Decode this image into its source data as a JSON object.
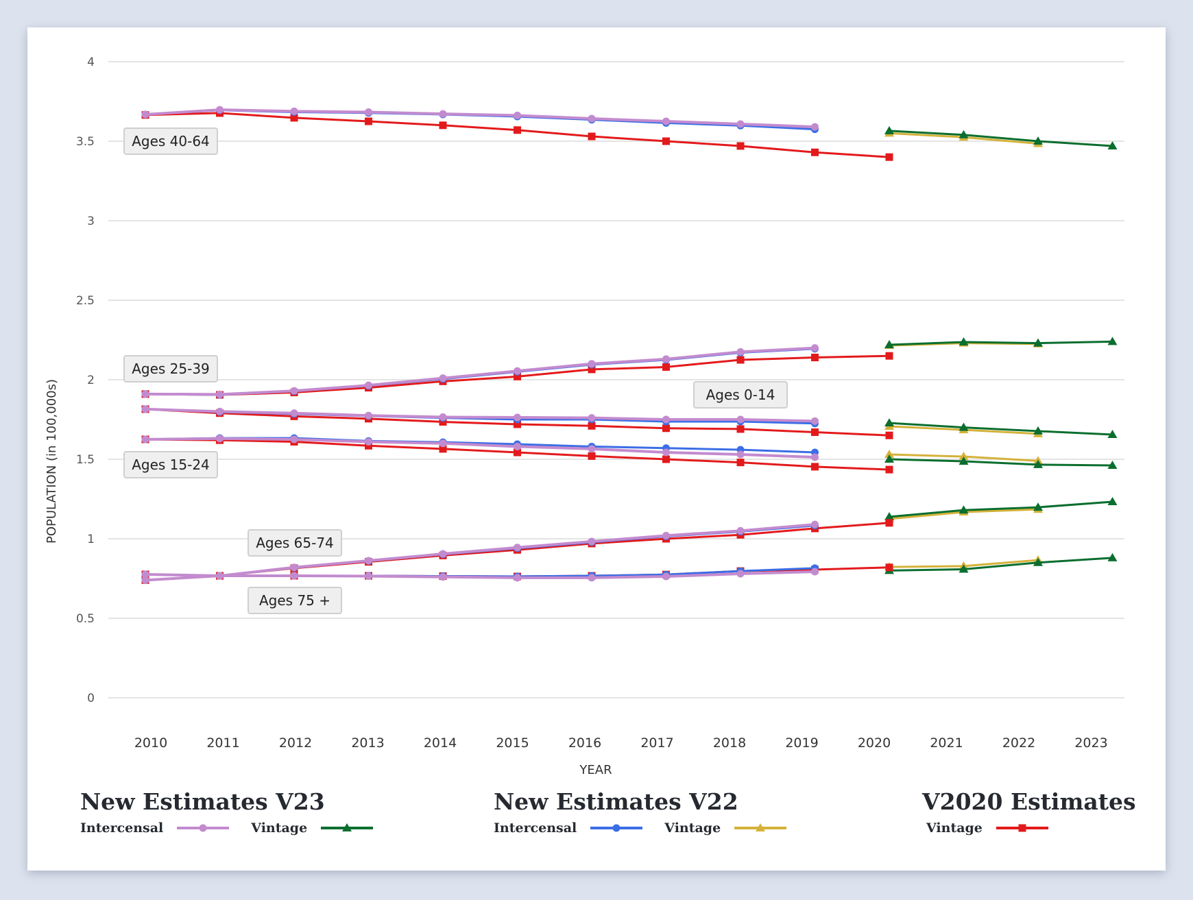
{
  "chart_data": {
    "type": "line",
    "title": "",
    "xlabel": "YEAR",
    "ylabel": "POPULATION (in 100,000s)",
    "ylim": [
      0,
      4
    ],
    "yticks": [
      "0",
      "0.5",
      "1",
      "1.5",
      "2",
      "2.5",
      "3",
      "3.5",
      "4"
    ],
    "ytick_values": [
      0,
      0.5,
      1,
      1.5,
      2,
      2.5,
      3,
      3.5,
      4
    ],
    "x": [
      2010,
      2011,
      2012,
      2013,
      2014,
      2015,
      2016,
      2017,
      2018,
      2019,
      2020,
      2021,
      2022,
      2023
    ],
    "xticks": [
      "2010",
      "2011",
      "2012",
      "2013",
      "2014",
      "2015",
      "2016",
      "2017",
      "2018",
      "2019",
      "2020",
      "2021",
      "2022",
      "2023"
    ],
    "grid": true,
    "legend_position": "bottom",
    "age_groups": [
      {
        "label": "Ages 40-64",
        "series": {
          "v22_intercensal": {
            "x": [
              2010,
              2011,
              2012,
              2013,
              2014,
              2015,
              2016,
              2017,
              2018,
              2019
            ],
            "values": [
              3.668,
              3.695,
              3.683,
              3.678,
              3.668,
              3.655,
              3.635,
              3.615,
              3.598,
              3.575
            ]
          },
          "v23_intercensal": {
            "x": [
              2010,
              2011,
              2012,
              2013,
              2014,
              2015,
              2016,
              2017,
              2018,
              2019
            ],
            "values": [
              3.668,
              3.698,
              3.688,
              3.683,
              3.672,
              3.662,
              3.642,
              3.625,
              3.608,
              3.59
            ]
          },
          "v2020_vintage": {
            "x": [
              2010,
              2011,
              2012,
              2013,
              2014,
              2015,
              2016,
              2017,
              2018,
              2019,
              2020
            ],
            "values": [
              3.665,
              3.677,
              3.647,
              3.625,
              3.6,
              3.57,
              3.53,
              3.5,
              3.47,
              3.43,
              3.4
            ]
          },
          "v22_vintage": {
            "x": [
              2020,
              2021,
              2022
            ],
            "values": [
              3.55,
              3.525,
              3.485
            ]
          },
          "v23_vintage": {
            "x": [
              2020,
              2021,
              2022,
              2023
            ],
            "values": [
              3.565,
              3.54,
              3.5,
              3.47
            ]
          }
        }
      },
      {
        "label": "Ages 25-39",
        "series": {
          "v22_intercensal": {
            "x": [
              2010,
              2011,
              2012,
              2013,
              2014,
              2015,
              2016,
              2017,
              2018,
              2019
            ],
            "values": [
              1.91,
              1.905,
              1.928,
              1.962,
              2.005,
              2.05,
              2.095,
              2.125,
              2.17,
              2.195
            ]
          },
          "v23_intercensal": {
            "x": [
              2010,
              2011,
              2012,
              2013,
              2014,
              2015,
              2016,
              2017,
              2018,
              2019
            ],
            "values": [
              1.91,
              1.908,
              1.93,
              1.965,
              2.01,
              2.055,
              2.1,
              2.13,
              2.175,
              2.2
            ]
          },
          "v2020_vintage": {
            "x": [
              2010,
              2011,
              2012,
              2013,
              2014,
              2015,
              2016,
              2017,
              2018,
              2019,
              2020
            ],
            "values": [
              1.91,
              1.905,
              1.92,
              1.95,
              1.99,
              2.02,
              2.065,
              2.08,
              2.125,
              2.14,
              2.15
            ]
          },
          "v22_vintage": {
            "x": [
              2020,
              2021,
              2022
            ],
            "values": [
              2.215,
              2.23,
              2.225
            ]
          },
          "v23_vintage": {
            "x": [
              2020,
              2021,
              2022,
              2023
            ],
            "values": [
              2.22,
              2.237,
              2.23,
              2.24
            ]
          }
        }
      },
      {
        "label": "Ages 0-14",
        "series": {
          "v22_intercensal": {
            "x": [
              2010,
              2011,
              2012,
              2013,
              2014,
              2015,
              2016,
              2017,
              2018,
              2019
            ],
            "values": [
              1.815,
              1.797,
              1.785,
              1.772,
              1.76,
              1.75,
              1.75,
              1.737,
              1.737,
              1.725
            ]
          },
          "v23_intercensal": {
            "x": [
              2010,
              2011,
              2012,
              2013,
              2014,
              2015,
              2016,
              2017,
              2018,
              2019
            ],
            "values": [
              1.815,
              1.8,
              1.79,
              1.775,
              1.765,
              1.763,
              1.76,
              1.75,
              1.75,
              1.74
            ]
          },
          "v2020_vintage": {
            "x": [
              2010,
              2011,
              2012,
              2013,
              2014,
              2015,
              2016,
              2017,
              2018,
              2019,
              2020
            ],
            "values": [
              1.815,
              1.79,
              1.77,
              1.755,
              1.735,
              1.72,
              1.71,
              1.695,
              1.69,
              1.67,
              1.65
            ]
          },
          "v22_vintage": {
            "x": [
              2020,
              2021,
              2022
            ],
            "values": [
              1.707,
              1.685,
              1.66
            ]
          },
          "v23_vintage": {
            "x": [
              2020,
              2021,
              2022,
              2023
            ],
            "values": [
              1.728,
              1.7,
              1.677,
              1.655
            ]
          }
        }
      },
      {
        "label": "Ages 15-24",
        "series": {
          "v22_intercensal": {
            "x": [
              2010,
              2011,
              2012,
              2013,
              2014,
              2015,
              2016,
              2017,
              2018,
              2019
            ],
            "values": [
              1.625,
              1.633,
              1.633,
              1.615,
              1.607,
              1.595,
              1.58,
              1.57,
              1.56,
              1.543
            ]
          },
          "v23_intercensal": {
            "x": [
              2010,
              2011,
              2012,
              2013,
              2014,
              2015,
              2016,
              2017,
              2018,
              2019
            ],
            "values": [
              1.625,
              1.63,
              1.625,
              1.61,
              1.6,
              1.58,
              1.565,
              1.543,
              1.53,
              1.513
            ]
          },
          "v2020_vintage": {
            "x": [
              2010,
              2011,
              2012,
              2013,
              2014,
              2015,
              2016,
              2017,
              2018,
              2019,
              2020
            ],
            "values": [
              1.625,
              1.62,
              1.61,
              1.585,
              1.565,
              1.543,
              1.52,
              1.5,
              1.48,
              1.453,
              1.435
            ]
          },
          "v22_vintage": {
            "x": [
              2020,
              2021,
              2022
            ],
            "values": [
              1.53,
              1.517,
              1.49
            ]
          },
          "v23_vintage": {
            "x": [
              2020,
              2021,
              2022,
              2023
            ],
            "values": [
              1.5,
              1.487,
              1.466,
              1.461
            ]
          }
        }
      },
      {
        "label": "Ages 65-74",
        "series": {
          "v22_intercensal": {
            "x": [
              2010,
              2011,
              2012,
              2013,
              2014,
              2015,
              2016,
              2017,
              2018,
              2019
            ],
            "values": [
              0.74,
              0.767,
              0.818,
              0.86,
              0.902,
              0.94,
              0.978,
              1.015,
              1.045,
              1.083
            ]
          },
          "v23_intercensal": {
            "x": [
              2010,
              2011,
              2012,
              2013,
              2014,
              2015,
              2016,
              2017,
              2018,
              2019
            ],
            "values": [
              0.74,
              0.767,
              0.82,
              0.862,
              0.905,
              0.945,
              0.983,
              1.02,
              1.05,
              1.09
            ]
          },
          "v2020_vintage": {
            "x": [
              2010,
              2011,
              2012,
              2013,
              2014,
              2015,
              2016,
              2017,
              2018,
              2019,
              2020
            ],
            "values": [
              0.74,
              0.767,
              0.815,
              0.855,
              0.895,
              0.93,
              0.97,
              1.0,
              1.025,
              1.065,
              1.1
            ]
          },
          "v22_vintage": {
            "x": [
              2020,
              2021,
              2022
            ],
            "values": [
              1.125,
              1.168,
              1.185
            ]
          },
          "v23_vintage": {
            "x": [
              2020,
              2021,
              2022,
              2023
            ],
            "values": [
              1.138,
              1.18,
              1.198,
              1.233
            ]
          }
        }
      },
      {
        "label": "Ages 75 +",
        "series": {
          "v22_intercensal": {
            "x": [
              2010,
              2011,
              2012,
              2013,
              2014,
              2015,
              2016,
              2017,
              2018,
              2019
            ],
            "values": [
              0.776,
              0.767,
              0.767,
              0.767,
              0.765,
              0.763,
              0.767,
              0.775,
              0.797,
              0.815
            ]
          },
          "v23_intercensal": {
            "x": [
              2010,
              2011,
              2012,
              2013,
              2014,
              2015,
              2016,
              2017,
              2018,
              2019
            ],
            "values": [
              0.776,
              0.767,
              0.767,
              0.765,
              0.76,
              0.755,
              0.755,
              0.763,
              0.78,
              0.793
            ]
          },
          "v2020_vintage": {
            "x": [
              2010,
              2011,
              2012,
              2013,
              2014,
              2015,
              2016,
              2017,
              2018,
              2019,
              2020
            ],
            "values": [
              0.776,
              0.767,
              0.767,
              0.767,
              0.765,
              0.763,
              0.767,
              0.775,
              0.797,
              0.806,
              0.82
            ]
          },
          "v22_vintage": {
            "x": [
              2020,
              2021,
              2022
            ],
            "values": [
              0.823,
              0.828,
              0.866
            ]
          },
          "v23_vintage": {
            "x": [
              2020,
              2021,
              2022,
              2023
            ],
            "values": [
              0.8,
              0.808,
              0.85,
              0.88
            ]
          }
        }
      }
    ],
    "series_styles": {
      "v22_vintage": {
        "color": "#d4b23a",
        "marker": "triangle"
      },
      "v23_vintage": {
        "color": "#0a6e2e",
        "marker": "triangle"
      },
      "v2020_vintage": {
        "color": "#e31a1c",
        "marker": "square"
      },
      "v22_intercensal": {
        "color": "#3b6ee6",
        "marker": "circle"
      },
      "v23_intercensal": {
        "color": "#c38bcf",
        "marker": "circle"
      }
    }
  },
  "age_labels": [
    "Ages 40-64",
    "Ages 25-39",
    "Ages 0-14",
    "Ages 15-24",
    "Ages 65-74",
    "Ages 75 +"
  ],
  "legend": {
    "groups": [
      {
        "title": "New Estimates V23",
        "items": [
          {
            "label": "Intercensal",
            "series": "v23_intercensal",
            "color": "#c38bcf",
            "marker": "circle"
          },
          {
            "label": "Vintage",
            "series": "v23_vintage",
            "color": "#0a6e2e",
            "marker": "triangle"
          }
        ]
      },
      {
        "title": "New Estimates V22",
        "items": [
          {
            "label": "Intercensal",
            "series": "v22_intercensal",
            "color": "#3b6ee6",
            "marker": "circle"
          },
          {
            "label": "Vintage",
            "series": "v22_vintage",
            "color": "#d4b23a",
            "marker": "triangle"
          }
        ]
      },
      {
        "title": "V2020 Estimates",
        "items": [
          {
            "label": "Vintage",
            "series": "v2020_vintage",
            "color": "#e31a1c",
            "marker": "square"
          }
        ]
      }
    ]
  }
}
